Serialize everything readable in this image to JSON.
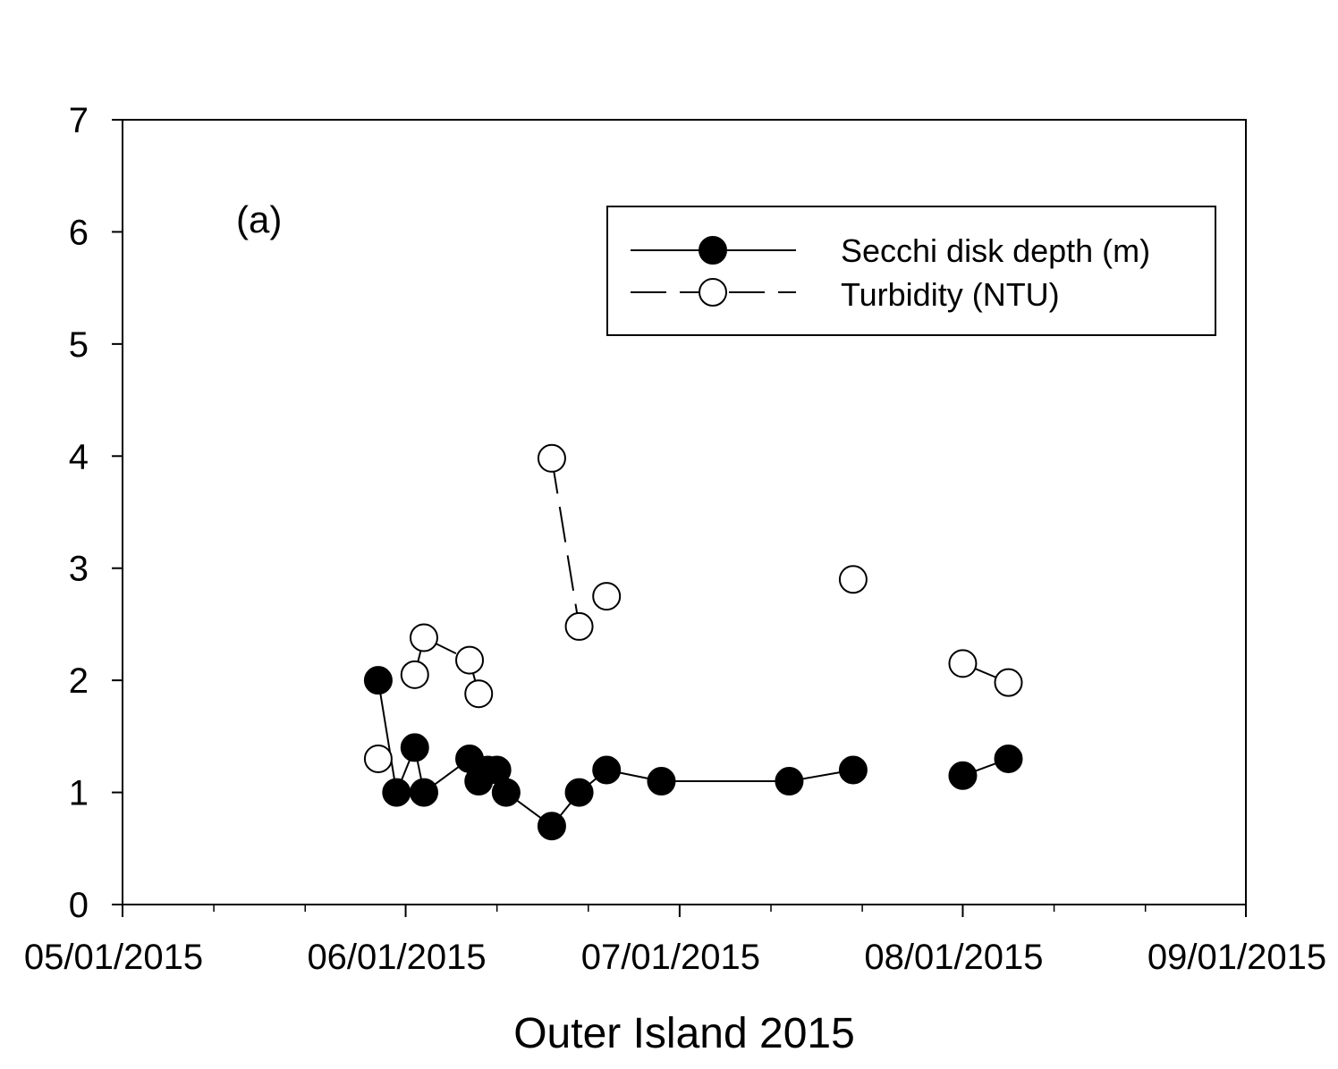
{
  "chart_data": {
    "type": "line",
    "panel_label": "(a)",
    "xlabel": "Outer Island 2015",
    "ylabel": "",
    "x_axis": {
      "type": "date",
      "range": [
        "2015-05-01",
        "2015-09-01"
      ],
      "tick_labels": [
        "05/01/2015",
        "06/01/2015",
        "07/01/2015",
        "08/01/2015",
        "09/01/2015"
      ]
    },
    "y_axis": {
      "range": [
        0,
        7
      ],
      "tick_labels": [
        "0",
        "1",
        "2",
        "3",
        "4",
        "5",
        "6",
        "7"
      ]
    },
    "grid": false,
    "legend_position": "top-right",
    "series": [
      {
        "name": "Secchi disk depth (m)",
        "marker": "filled-circle",
        "line": "solid",
        "color": "#000000",
        "points": [
          {
            "x": "2015-05-29",
            "y": 2.0,
            "connected": false
          },
          {
            "x": "2015-05-31",
            "y": 1.0,
            "connected": true
          },
          {
            "x": "2015-06-02",
            "y": 1.4,
            "connected": true
          },
          {
            "x": "2015-06-03",
            "y": 1.0,
            "connected": true
          },
          {
            "x": "2015-06-08",
            "y": 1.3,
            "connected": true
          },
          {
            "x": "2015-06-09",
            "y": 1.1,
            "connected": true
          },
          {
            "x": "2015-06-10",
            "y": 1.2,
            "connected": true
          },
          {
            "x": "2015-06-11",
            "y": 1.2,
            "connected": true
          },
          {
            "x": "2015-06-12",
            "y": 1.0,
            "connected": true
          },
          {
            "x": "2015-06-17",
            "y": 0.7,
            "connected": true
          },
          {
            "x": "2015-06-20",
            "y": 1.0,
            "connected": true
          },
          {
            "x": "2015-06-23",
            "y": 1.2,
            "connected": true
          },
          {
            "x": "2015-06-29",
            "y": 1.1,
            "connected": true
          },
          {
            "x": "2015-07-13",
            "y": 1.1,
            "connected": true
          },
          {
            "x": "2015-07-20",
            "y": 1.2,
            "connected": true
          },
          {
            "x": "2015-08-01",
            "y": 1.15,
            "connected": false
          },
          {
            "x": "2015-08-06",
            "y": 1.3,
            "connected": true
          }
        ]
      },
      {
        "name": "Turbidity (NTU)",
        "marker": "open-circle",
        "line": "dashed",
        "color": "#000000",
        "points": [
          {
            "x": "2015-05-29",
            "y": 1.3,
            "connected": false
          },
          {
            "x": "2015-06-02",
            "y": 2.05,
            "connected": false
          },
          {
            "x": "2015-06-03",
            "y": 2.38,
            "connected": true
          },
          {
            "x": "2015-06-08",
            "y": 2.18,
            "connected": true
          },
          {
            "x": "2015-06-09",
            "y": 1.88,
            "connected": true
          },
          {
            "x": "2015-06-17",
            "y": 3.98,
            "connected": false
          },
          {
            "x": "2015-06-20",
            "y": 2.48,
            "connected": true
          },
          {
            "x": "2015-06-23",
            "y": 2.75,
            "connected": false
          },
          {
            "x": "2015-07-20",
            "y": 2.9,
            "connected": false
          },
          {
            "x": "2015-08-01",
            "y": 2.15,
            "connected": false
          },
          {
            "x": "2015-08-06",
            "y": 1.98,
            "connected": true
          }
        ]
      }
    ]
  }
}
